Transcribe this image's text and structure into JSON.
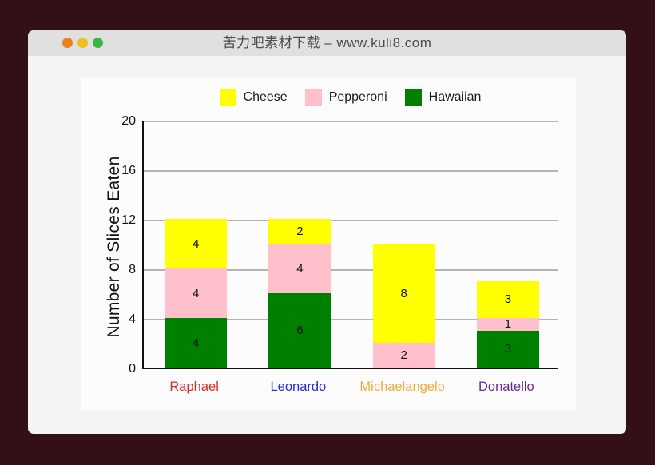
{
  "window": {
    "title": "苦力吧素材下载 – www.kuli8.com",
    "traffic_lights": [
      "#f08019",
      "#eec21b",
      "#39b54a"
    ]
  },
  "colors": {
    "desktop_bg": "#331016",
    "titlebar_bg": "#e0e0e1",
    "window_bg": "#f4f4f5",
    "panel_bg": "#fcfcfc",
    "gridline": "#b4b4b4",
    "axis": "#111111"
  },
  "chart_data": {
    "type": "bar",
    "stacked": true,
    "title": "",
    "ylabel": "Number of Slices Eaten",
    "xlabel": "",
    "ylim": [
      0,
      20
    ],
    "yticks": [
      0,
      4,
      8,
      12,
      16,
      20
    ],
    "grid": true,
    "legend_position": "top",
    "legend": [
      {
        "label": "Cheese",
        "color": "#ffff00"
      },
      {
        "label": "Pepperoni",
        "color": "#ffc0cb"
      },
      {
        "label": "Hawaiian",
        "color": "#008000"
      }
    ],
    "categories": [
      {
        "label": "Raphael",
        "color": "#d62b2b"
      },
      {
        "label": "Leonardo",
        "color": "#2b2bd6"
      },
      {
        "label": "Michaelangelo",
        "color": "#f0ad3e"
      },
      {
        "label": "Donatello",
        "color": "#662d91"
      }
    ],
    "series": [
      {
        "name": "Hawaiian",
        "color": "#008000",
        "values": [
          4,
          6,
          0,
          3
        ]
      },
      {
        "name": "Pepperoni",
        "color": "#ffc0cb",
        "values": [
          4,
          4,
          2,
          1
        ]
      },
      {
        "name": "Cheese",
        "color": "#ffff00",
        "values": [
          4,
          2,
          8,
          3
        ]
      }
    ],
    "value_labels": true
  }
}
